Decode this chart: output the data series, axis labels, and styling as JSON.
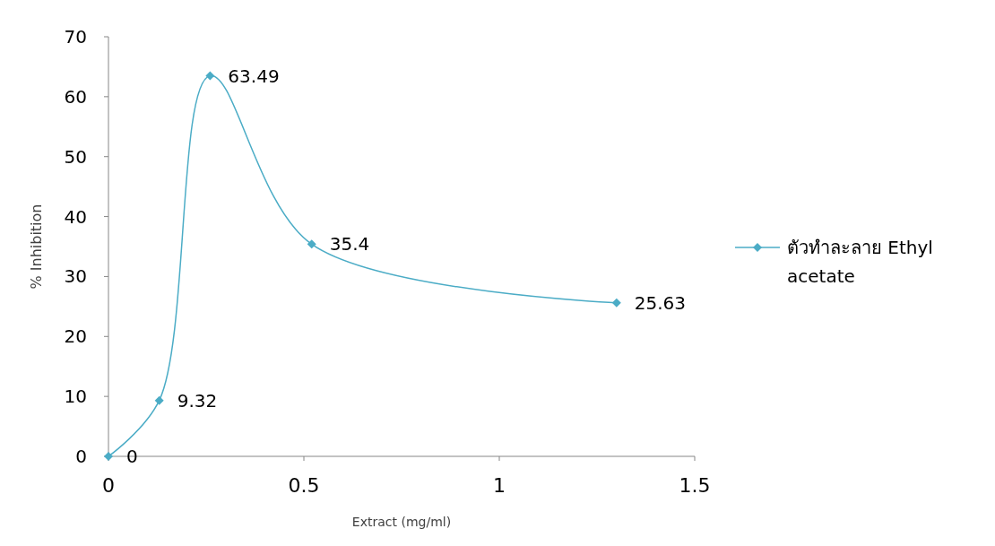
{
  "chart_data": {
    "type": "line",
    "xlabel": "Extract (mg/ml)",
    "ylabel": "% Inhibition",
    "x": [
      0,
      0.13,
      0.26,
      0.52,
      1.3
    ],
    "series": [
      {
        "name": "ตัวทำละลาย Ethyl acetate",
        "color": "#4bacc6",
        "values": [
          0,
          9.32,
          63.49,
          35.4,
          25.63
        ]
      }
    ],
    "xlim": [
      0,
      1.5
    ],
    "xticks": [
      0,
      0.5,
      1,
      1.5
    ],
    "ylim": [
      0,
      70
    ],
    "yticks": [
      0,
      10,
      20,
      30,
      40,
      50,
      60,
      70
    ],
    "grid": false,
    "legend": "right",
    "marker": "diamond",
    "line_style": "solid",
    "data_labels": true
  }
}
